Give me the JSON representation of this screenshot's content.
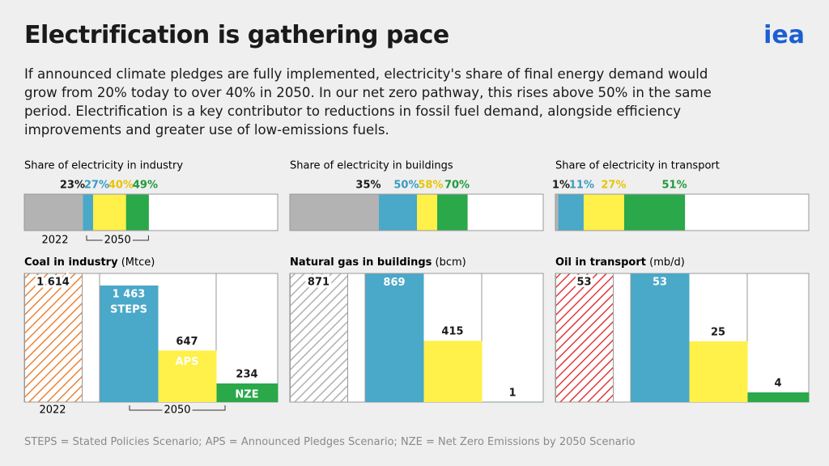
{
  "title": "Electrification is gathering pace",
  "logo": "iea",
  "subtitle": "If announced climate pledges are fully implemented, electricity's share of final energy demand would grow from 20% today to over 40% in 2050. In our net zero pathway, this rises above 50% in the same period. Electrification is a key contributor to reductions in fossil fuel demand, alongside efficiency improvements and greater use of low-emissions fuels.",
  "footnote": "STEPS = Stated Policies Scenario; APS = Announced Pledges Scenario; NZE = Net Zero Emissions by 2050 Scenario",
  "chart_data": [
    {
      "type": "share",
      "title": "Share of electricity in industry",
      "values": [
        23,
        27,
        40,
        49
      ],
      "value_labels": [
        "23%",
        "27%",
        "40%",
        "49%"
      ],
      "colors": [
        "#b3b3b3",
        "#4aa8c8",
        "#fff04a",
        "#2aa84a"
      ],
      "xlim": [
        0,
        100
      ],
      "period_labels": [
        "2022",
        "2050"
      ]
    },
    {
      "type": "share",
      "title": "Share of electricity in buildings",
      "values": [
        35,
        50,
        58,
        70
      ],
      "value_labels": [
        "35%",
        "50%",
        "58%",
        "70%"
      ],
      "colors": [
        "#b3b3b3",
        "#4aa8c8",
        "#fff04a",
        "#2aa84a"
      ],
      "xlim": [
        0,
        100
      ]
    },
    {
      "type": "share",
      "title": "Share of electricity in transport",
      "values": [
        1,
        11,
        27,
        51
      ],
      "value_labels": [
        "1%",
        "11%",
        "27%",
        "51%"
      ],
      "colors": [
        "#b3b3b3",
        "#4aa8c8",
        "#fff04a",
        "#2aa84a"
      ],
      "xlim": [
        0,
        100
      ]
    },
    {
      "type": "bar",
      "title": "Coal in industry",
      "unit": "(Mtce)",
      "values": [
        1614,
        1463,
        647,
        234
      ],
      "value_labels": [
        "1 614",
        "1 463",
        "647",
        "234"
      ],
      "categories": [
        null,
        "STEPS",
        "APS",
        "NZE"
      ],
      "colors": [
        "#e8843a",
        "#4aa8c8",
        "#fff04a",
        "#2aa84a"
      ],
      "ylim": [
        0,
        1614
      ],
      "period_labels": [
        "2022",
        "2050"
      ]
    },
    {
      "type": "bar",
      "title": "Natural gas in buildings",
      "unit": "(bcm)",
      "values": [
        871,
        869,
        415,
        1
      ],
      "colors": [
        "#b0b0b0",
        "#4aa8c8",
        "#fff04a",
        "#2aa84a"
      ],
      "ylim": [
        0,
        871
      ]
    },
    {
      "type": "bar",
      "title": "Oil in transport",
      "unit": "(mb/d)",
      "values": [
        53,
        53,
        25,
        4
      ],
      "colors": [
        "#e0393e",
        "#4aa8c8",
        "#fff04a",
        "#2aa84a"
      ],
      "ylim": [
        0,
        53
      ]
    }
  ]
}
